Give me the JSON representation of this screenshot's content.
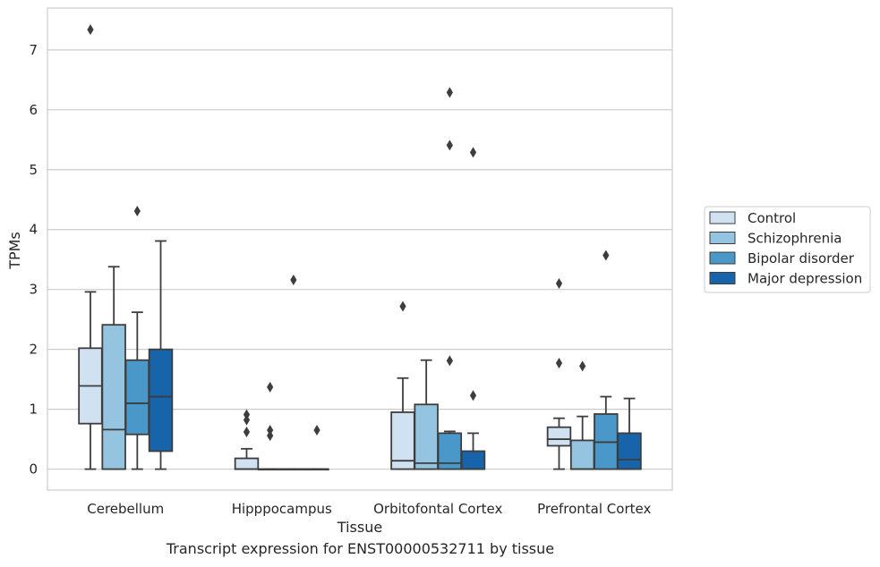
{
  "caption": "Transcript expression for ENST00000532711 by tissue",
  "chart_data": {
    "type": "boxplot",
    "xlabel": "Tissue",
    "ylabel": "TPMs",
    "ylim": [
      -0.35,
      7.7
    ],
    "yticks": [
      0,
      1,
      2,
      3,
      4,
      5,
      6,
      7
    ],
    "grid": "horizontal",
    "legend_position": "right",
    "categories": [
      "Cerebellum",
      "Hipppocampus",
      "Orbitofontal Cortex",
      "Prefrontal Cortex"
    ],
    "series": [
      {
        "name": "Control",
        "color": "#d0e1f2",
        "boxes": [
          {
            "whislo": 0.0,
            "q1": 0.76,
            "med": 1.39,
            "q3": 2.02,
            "whishi": 2.96,
            "fliers": [
              7.34
            ]
          },
          {
            "whislo": 0.0,
            "q1": 0.0,
            "med": 0.0,
            "q3": 0.18,
            "whishi": 0.34,
            "fliers": [
              0.91,
              0.82,
              0.62
            ]
          },
          {
            "whislo": 0.0,
            "q1": 0.0,
            "med": 0.14,
            "q3": 0.95,
            "whishi": 1.52,
            "fliers": [
              2.72
            ]
          },
          {
            "whislo": 0.0,
            "q1": 0.39,
            "med": 0.5,
            "q3": 0.7,
            "whishi": 0.85,
            "fliers": [
              3.1,
              1.77
            ]
          }
        ]
      },
      {
        "name": "Schizophrenia",
        "color": "#94c4df",
        "boxes": [
          {
            "whislo": 0.0,
            "q1": 0.0,
            "med": 0.66,
            "q3": 2.41,
            "whishi": 3.38,
            "fliers": []
          },
          {
            "whislo": 0.0,
            "q1": 0.0,
            "med": 0.0,
            "q3": 0.0,
            "whishi": 0.0,
            "fliers": [
              1.37,
              0.65,
              0.56
            ]
          },
          {
            "whislo": 0.0,
            "q1": 0.0,
            "med": 0.1,
            "q3": 1.08,
            "whishi": 1.82,
            "fliers": []
          },
          {
            "whislo": 0.0,
            "q1": 0.0,
            "med": 0.0,
            "q3": 0.48,
            "whishi": 0.88,
            "fliers": [
              1.72
            ]
          }
        ]
      },
      {
        "name": "Bipolar disorder",
        "color": "#4a98c9",
        "boxes": [
          {
            "whislo": 0.0,
            "q1": 0.58,
            "med": 1.1,
            "q3": 1.82,
            "whishi": 2.62,
            "fliers": [
              4.31
            ]
          },
          {
            "whislo": 0.0,
            "q1": 0.0,
            "med": 0.0,
            "q3": 0.0,
            "whishi": 0.0,
            "fliers": [
              3.16
            ]
          },
          {
            "whislo": 0.0,
            "q1": 0.0,
            "med": 0.1,
            "q3": 0.6,
            "whishi": 0.63,
            "fliers": [
              6.29,
              5.41,
              1.81
            ]
          },
          {
            "whislo": 0.0,
            "q1": 0.0,
            "med": 0.45,
            "q3": 0.92,
            "whishi": 1.21,
            "fliers": [
              3.57
            ]
          }
        ]
      },
      {
        "name": "Major depression",
        "color": "#1764ab",
        "boxes": [
          {
            "whislo": 0.0,
            "q1": 0.3,
            "med": 1.21,
            "q3": 2.0,
            "whishi": 3.81,
            "fliers": []
          },
          {
            "whislo": 0.0,
            "q1": 0.0,
            "med": 0.0,
            "q3": 0.0,
            "whishi": 0.0,
            "fliers": [
              0.65
            ]
          },
          {
            "whislo": 0.0,
            "q1": 0.0,
            "med": 0.0,
            "q3": 0.3,
            "whishi": 0.6,
            "fliers": [
              5.29,
              1.23
            ]
          },
          {
            "whislo": 0.0,
            "q1": 0.0,
            "med": 0.16,
            "q3": 0.6,
            "whishi": 1.18,
            "fliers": []
          }
        ]
      }
    ]
  }
}
